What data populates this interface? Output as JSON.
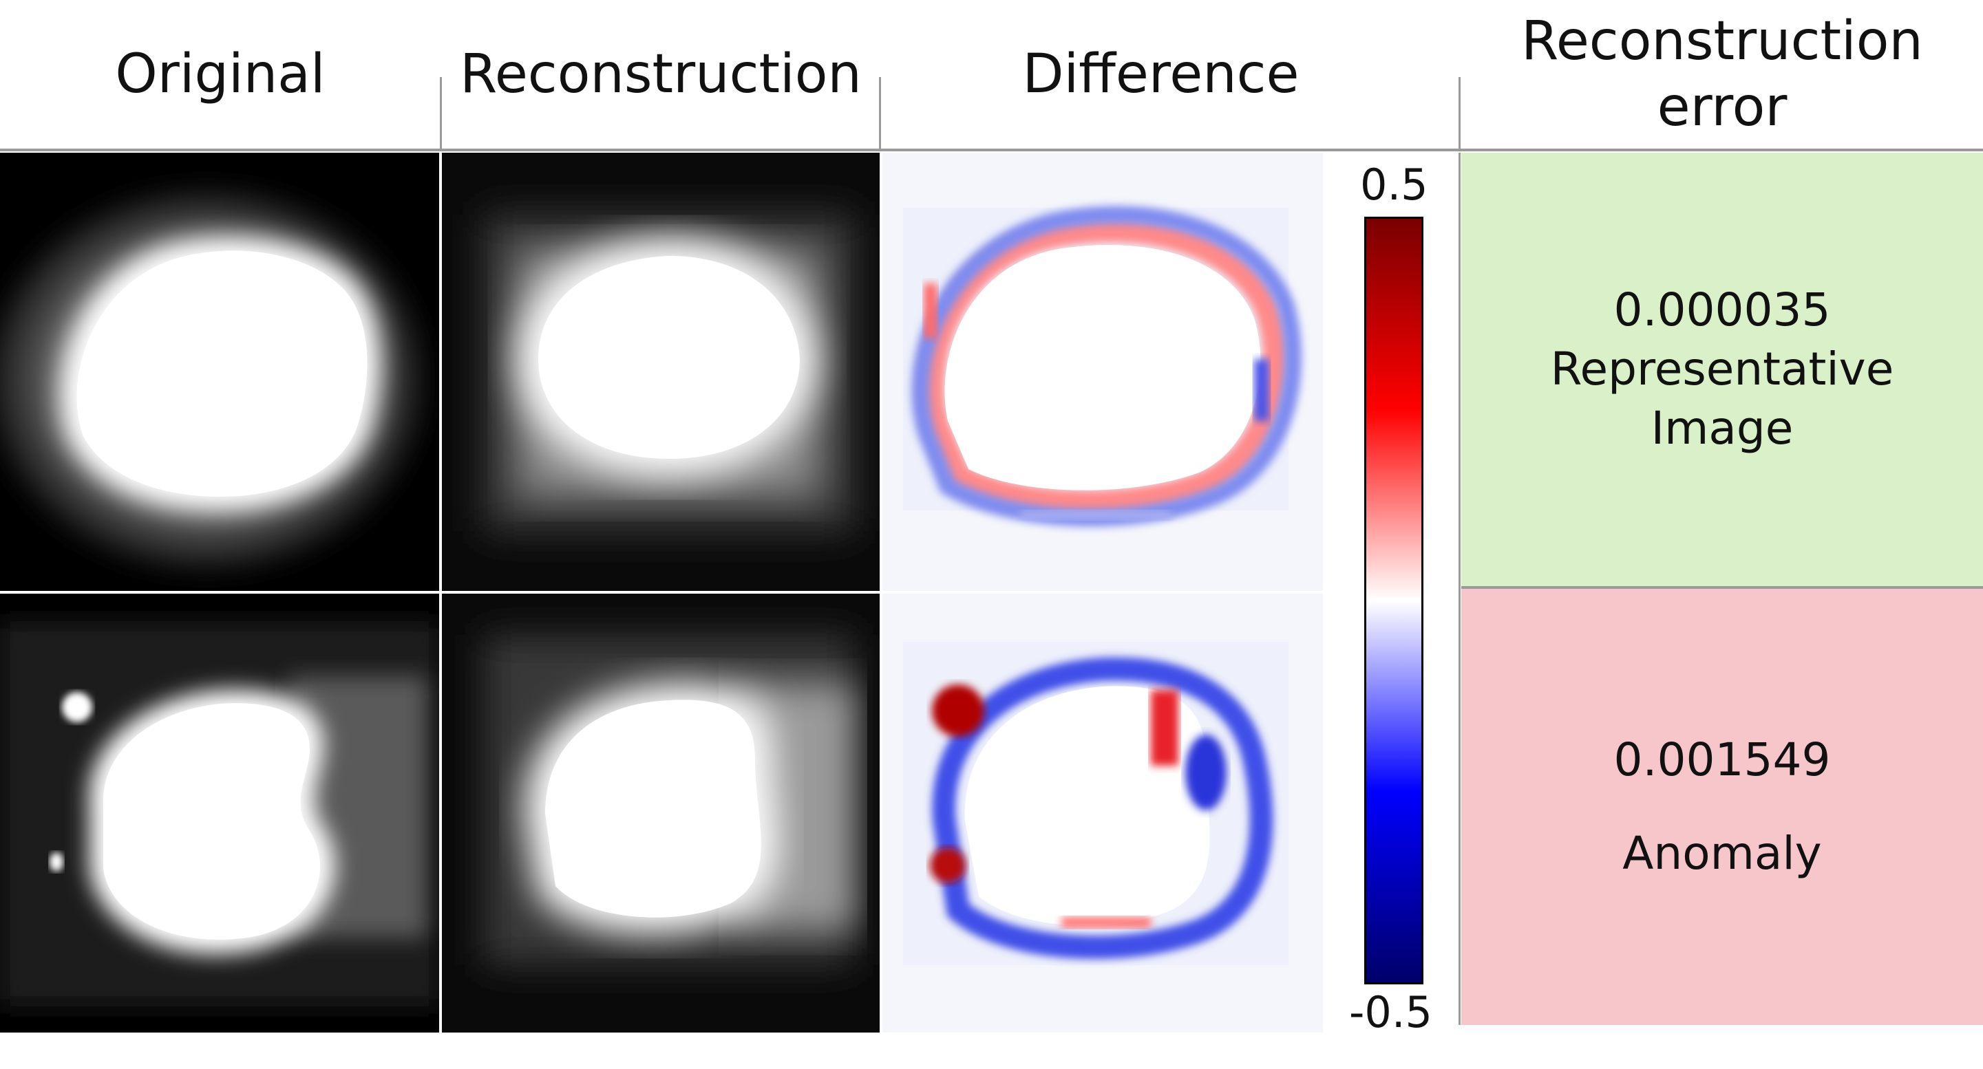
{
  "headers": {
    "original": "Original",
    "reconstruction": "Reconstruction",
    "difference": "Difference",
    "error_line1": "Reconstruction",
    "error_line2": "error"
  },
  "colorbar": {
    "max_label": "0.5",
    "min_label": "-0.5",
    "colors": [
      "#7a0000",
      "#ff0000",
      "#ffffff",
      "#0000ff",
      "#00006a"
    ]
  },
  "rows": [
    {
      "error_value": "0.000035",
      "verdict_line1": "Representative",
      "verdict_line2": "Image",
      "bg": "#d9f0c8"
    },
    {
      "error_value": "0.001549",
      "verdict_line1": "Anomaly",
      "verdict_line2": "",
      "bg": "#f7c6cb"
    }
  ]
}
